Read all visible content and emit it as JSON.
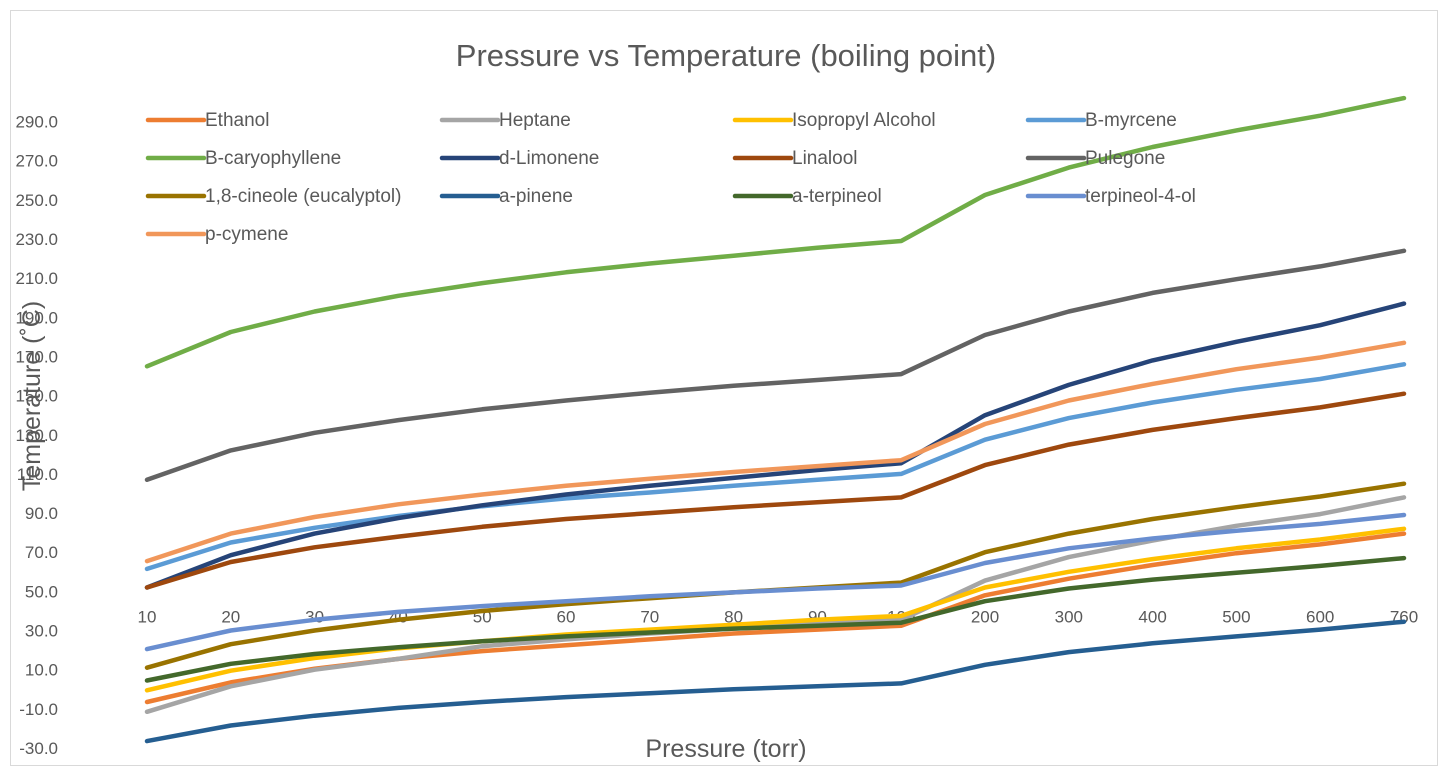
{
  "chart_data": {
    "type": "line",
    "title": "Pressure vs Temperature (boiling point)",
    "xlabel": "Pressure (torr)",
    "ylabel": "Temperature (˚C)",
    "categories": [
      "10",
      "20",
      "30",
      "40",
      "50",
      "60",
      "70",
      "80",
      "90",
      "100",
      "200",
      "300",
      "400",
      "500",
      "600",
      "760"
    ],
    "y_ticks": [
      "-30.0",
      "-10.0",
      "10.0",
      "30.0",
      "50.0",
      "70.0",
      "90.0",
      "110.0",
      "130.0",
      "150.0",
      "170.0",
      "190.0",
      "210.0",
      "230.0",
      "250.0",
      "270.0",
      "290.0"
    ],
    "ylim": [
      -30,
      300
    ],
    "grid": false,
    "legend_position": "top",
    "series": [
      {
        "name": "Ethanol",
        "color": "#ED7D31",
        "values": [
          -6.5,
          3.5,
          10.5,
          15.5,
          19.5,
          22.5,
          25.5,
          28.5,
          30.5,
          32.5,
          48.0,
          56.5,
          63.5,
          69.5,
          74.0,
          79.5
        ]
      },
      {
        "name": "Heptane",
        "color": "#A5A5A5",
        "values": [
          -11.5,
          1.5,
          10.0,
          15.5,
          22.0,
          25.5,
          28.5,
          31.0,
          33.5,
          35.5,
          55.5,
          67.5,
          76.0,
          83.5,
          89.5,
          98.0
        ]
      },
      {
        "name": "Isopropyl Alcohol",
        "color": "#FFC000",
        "values": [
          -0.5,
          9.5,
          16.0,
          21.0,
          24.5,
          28.0,
          30.5,
          33.0,
          35.5,
          37.5,
          52.0,
          60.0,
          66.5,
          72.0,
          76.5,
          82.0
        ]
      },
      {
        "name": "B-myrcene",
        "color": "#5B9BD5",
        "values": [
          61.5,
          75.0,
          82.5,
          88.5,
          93.5,
          97.5,
          100.5,
          104.0,
          107.0,
          110.0,
          127.5,
          138.5,
          146.5,
          153.0,
          158.5,
          166.0
        ]
      },
      {
        "name": "B-caryophyllene",
        "color": "#70AD47",
        "values": [
          165.0,
          182.5,
          193.0,
          201.0,
          207.5,
          213.0,
          217.5,
          221.5,
          225.5,
          229.0,
          252.5,
          266.5,
          277.0,
          285.5,
          293.0,
          302.0
        ]
      },
      {
        "name": "d-Limonene",
        "color": "#264478",
        "values": [
          52.0,
          68.5,
          79.5,
          87.5,
          94.0,
          99.5,
          104.0,
          108.0,
          112.0,
          115.5,
          140.0,
          155.5,
          168.0,
          177.5,
          186.0,
          197.0
        ]
      },
      {
        "name": "Linalool",
        "color": "#9E480E",
        "values": [
          52.0,
          65.0,
          72.5,
          78.0,
          83.0,
          87.0,
          90.0,
          93.0,
          95.5,
          98.0,
          114.5,
          125.0,
          132.5,
          138.5,
          144.0,
          151.0
        ]
      },
      {
        "name": "Pulegone",
        "color": "#636363",
        "values": [
          107.0,
          122.0,
          131.0,
          137.5,
          143.0,
          147.5,
          151.5,
          155.0,
          158.0,
          161.0,
          181.0,
          193.0,
          202.5,
          209.5,
          216.0,
          224.0
        ]
      },
      {
        "name": "1,8-cineole (eucalyptol)",
        "color": "#997300",
        "values": [
          11.0,
          23.0,
          30.0,
          35.5,
          40.0,
          43.5,
          46.5,
          49.5,
          52.0,
          54.5,
          70.0,
          79.5,
          87.0,
          93.0,
          98.5,
          105.0
        ]
      },
      {
        "name": "a-pinene",
        "color": "#255E91",
        "values": [
          -26.5,
          -18.5,
          -13.5,
          -9.5,
          -6.5,
          -4.0,
          -2.0,
          0.0,
          1.5,
          3.0,
          12.5,
          19.0,
          23.5,
          27.0,
          30.5,
          34.5
        ]
      },
      {
        "name": "a-terpineol",
        "color": "#43682B",
        "values": [
          4.5,
          13.0,
          18.0,
          21.5,
          24.5,
          27.0,
          29.0,
          31.0,
          32.5,
          34.0,
          45.0,
          51.5,
          56.0,
          59.5,
          63.0,
          67.0
        ]
      },
      {
        "name": "terpineol-4-ol",
        "color": "#698ED0",
        "values": [
          20.5,
          30.0,
          35.5,
          39.5,
          42.5,
          45.0,
          47.5,
          49.5,
          51.5,
          53.0,
          64.5,
          72.0,
          77.0,
          81.0,
          84.5,
          89.0
        ]
      },
      {
        "name": "p-cymene",
        "color": "#F1975A",
        "values": [
          65.5,
          79.5,
          88.0,
          94.5,
          99.5,
          104.0,
          107.5,
          111.0,
          114.0,
          117.0,
          135.5,
          147.5,
          156.0,
          163.5,
          169.5,
          177.0
        ]
      }
    ]
  }
}
